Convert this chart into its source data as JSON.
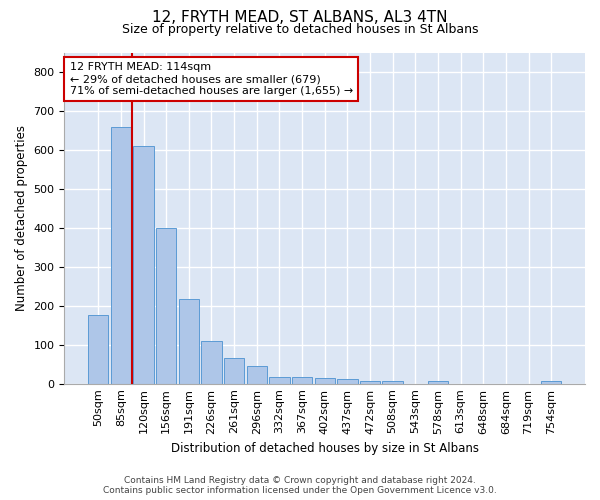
{
  "title": "12, FRYTH MEAD, ST ALBANS, AL3 4TN",
  "subtitle": "Size of property relative to detached houses in St Albans",
  "xlabel": "Distribution of detached houses by size in St Albans",
  "ylabel": "Number of detached properties",
  "categories": [
    "50sqm",
    "85sqm",
    "120sqm",
    "156sqm",
    "191sqm",
    "226sqm",
    "261sqm",
    "296sqm",
    "332sqm",
    "367sqm",
    "402sqm",
    "437sqm",
    "472sqm",
    "508sqm",
    "543sqm",
    "578sqm",
    "613sqm",
    "648sqm",
    "684sqm",
    "719sqm",
    "754sqm"
  ],
  "values": [
    175,
    660,
    610,
    400,
    218,
    110,
    65,
    45,
    18,
    17,
    15,
    13,
    8,
    8,
    0,
    8,
    0,
    0,
    0,
    0,
    8
  ],
  "bar_color": "#aec6e8",
  "bar_edge_color": "#5b9bd5",
  "background_color": "#dce6f4",
  "grid_color": "#ffffff",
  "property_line_color": "#cc0000",
  "annotation_text_line1": "12 FRYTH MEAD: 114sqm",
  "annotation_text_line2": "← 29% of detached houses are smaller (679)",
  "annotation_text_line3": "71% of semi-detached houses are larger (1,655) →",
  "annotation_box_color": "#cc0000",
  "ylim": [
    0,
    850
  ],
  "yticks": [
    0,
    100,
    200,
    300,
    400,
    500,
    600,
    700,
    800
  ],
  "footer_line1": "Contains HM Land Registry data © Crown copyright and database right 2024.",
  "footer_line2": "Contains public sector information licensed under the Open Government Licence v3.0.",
  "title_fontsize": 11,
  "subtitle_fontsize": 9,
  "xlabel_fontsize": 8.5,
  "ylabel_fontsize": 8.5,
  "tick_fontsize": 8,
  "annotation_fontsize": 8,
  "footer_fontsize": 6.5
}
